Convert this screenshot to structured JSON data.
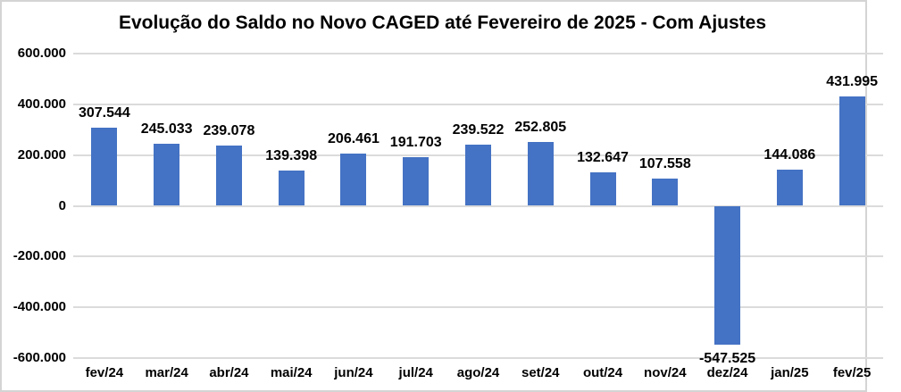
{
  "chart_data": {
    "type": "bar",
    "title": "Evolução do Saldo no Novo CAGED até Fevereiro de 2025 - Com Ajustes",
    "categories": [
      "fev/24",
      "mar/24",
      "abr/24",
      "mai/24",
      "jun/24",
      "jul/24",
      "ago/24",
      "set/24",
      "out/24",
      "nov/24",
      "dez/24",
      "jan/25",
      "fev/25"
    ],
    "values": [
      307544,
      245033,
      239078,
      139398,
      206461,
      191703,
      239522,
      252805,
      132647,
      107558,
      -547525,
      144086,
      431995
    ],
    "value_labels": [
      "307.544",
      "245.033",
      "239.078",
      "139.398",
      "206.461",
      "191.703",
      "239.522",
      "252.805",
      "132.647",
      "107.558",
      "-547.525",
      "144.086",
      "431.995"
    ],
    "xlabel": "",
    "ylabel": "",
    "ylim": [
      -600000,
      600000
    ],
    "yticks": [
      600000,
      400000,
      200000,
      0,
      -200000,
      -400000,
      -600000
    ],
    "ytick_labels": [
      "600.000",
      "400.000",
      "200.000",
      "0",
      "-200.000",
      "-400.000",
      "-600.000"
    ],
    "grid": true,
    "legend": "none"
  },
  "colors": {
    "bar": "#4472C4",
    "gridline": "#DBDBDB",
    "text": "#000000",
    "background": "#FFFFFF",
    "frame_border": "#D4D4D4"
  }
}
